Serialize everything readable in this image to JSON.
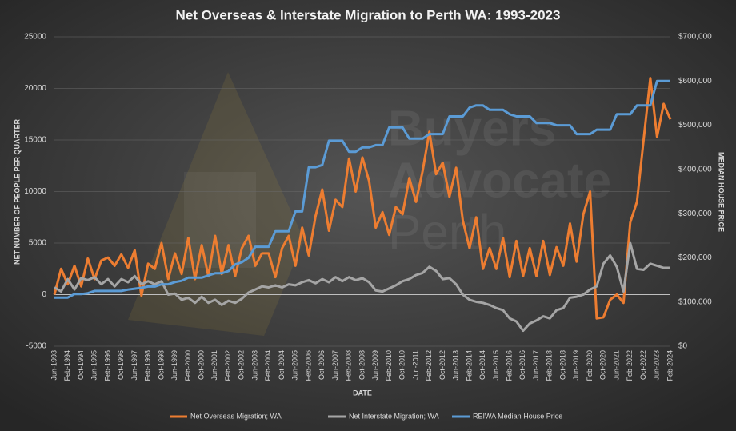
{
  "chart_data": {
    "type": "line",
    "title": "Net Overseas & Interstate Migration to Perth WA: 1993-2023",
    "y_label": "NET NUMBER OF PEOPLE PER QUARTER",
    "y2_label": "MEDIAN HOUSE PRICE",
    "x_label": "DATE",
    "watermark": [
      "Buyers",
      "Advocate",
      "Perth"
    ],
    "categories": [
      "Jun-1993",
      null,
      "Feb-1994",
      null,
      "Oct-1994",
      null,
      "Jun-1995",
      null,
      "Feb-1996",
      null,
      "Oct-1996",
      null,
      "Jun-1997",
      null,
      "Feb-1998",
      null,
      "Oct-1998",
      null,
      "Jun-1999",
      null,
      "Feb-2000",
      null,
      "Oct-2000",
      null,
      "Jun-2001",
      null,
      "Feb-2002",
      null,
      "Oct-2002",
      null,
      "Jun-2003",
      null,
      "Feb-2004",
      null,
      "Oct-2004",
      null,
      "Jun-2005",
      null,
      "Feb-2006",
      null,
      "Oct-2006",
      null,
      "Jun-2007",
      null,
      "Feb-2008",
      null,
      "Oct-2008",
      null,
      "Jun-2009",
      null,
      "Feb-2010",
      null,
      "Oct-2010",
      null,
      "Jun-2011",
      null,
      "Feb-2012",
      null,
      "Oct-2012",
      null,
      "Jun-2013",
      null,
      "Feb-2014",
      null,
      "Oct-2014",
      null,
      "Jun-2015",
      null,
      "Feb-2016",
      null,
      "Oct-2016",
      null,
      "Jun-2017",
      null,
      "Feb-2018",
      null,
      "Oct-2018",
      null,
      "Jun-2019",
      null,
      "Feb-2020",
      null,
      "Oct-2020",
      null,
      "Jun-2021",
      null,
      "Feb-2022",
      null,
      "Oct-2022",
      null,
      "Jun-2023",
      null,
      "Feb-2024"
    ],
    "series": [
      {
        "name": "Net Overseas Migration; WA",
        "color": "#ed7d31",
        "axis": "y",
        "values": [
          0,
          2500,
          1000,
          2800,
          800,
          3500,
          1500,
          3300,
          3600,
          2800,
          3900,
          2600,
          4300,
          -100,
          3000,
          2500,
          5000,
          1500,
          4000,
          2000,
          5500,
          1500,
          4800,
          1800,
          5700,
          2000,
          4800,
          1800,
          4500,
          5700,
          2800,
          4000,
          4000,
          1700,
          4500,
          5700,
          2800,
          6500,
          3800,
          7600,
          10200,
          6200,
          9200,
          8500,
          13200,
          10000,
          13300,
          11000,
          6500,
          8000,
          5800,
          8500,
          7800,
          11300,
          9000,
          12000,
          15800,
          11700,
          12800,
          9500,
          12300,
          7200,
          4500,
          7500,
          2500,
          4500,
          2500,
          5500,
          1700,
          5200,
          1800,
          4500,
          1800,
          5200,
          1900,
          4600,
          2800,
          6900,
          3200,
          7800,
          10000,
          -2300,
          -2200,
          -500,
          0,
          -800,
          7000,
          9000,
          15000,
          21000,
          15300,
          18500,
          17000
        ]
      },
      {
        "name": "Net Interstate Migration; WA",
        "color": "#a5a5a5",
        "axis": "y",
        "values": [
          700,
          300,
          1500,
          500,
          1600,
          1400,
          1700,
          1000,
          1500,
          800,
          1500,
          1200,
          1800,
          1000,
          1300,
          1000,
          1300,
          0,
          100,
          -500,
          -300,
          -800,
          -200,
          -800,
          -500,
          -1000,
          -600,
          -800,
          -400,
          200,
          500,
          800,
          700,
          900,
          700,
          1000,
          900,
          1200,
          1400,
          1100,
          1500,
          1200,
          1700,
          1300,
          1700,
          1400,
          1600,
          1200,
          400,
          300,
          600,
          900,
          1300,
          1500,
          1900,
          2100,
          2700,
          2300,
          1500,
          1600,
          1000,
          0,
          -500,
          -700,
          -800,
          -1000,
          -1300,
          -1500,
          -2300,
          -2600,
          -3500,
          -2800,
          -2500,
          -2100,
          -2300,
          -1500,
          -1300,
          -300,
          -200,
          0,
          500,
          800,
          3000,
          3800,
          2700,
          300,
          5000,
          2500,
          2400,
          3000,
          2800,
          2600,
          2600
        ]
      },
      {
        "name": "REIWA Median House Price",
        "color": "#5b9bd5",
        "axis": "y2",
        "values": [
          110000,
          110000,
          110000,
          118000,
          118000,
          120000,
          125000,
          125000,
          125000,
          125000,
          125000,
          128000,
          130000,
          132000,
          135000,
          135000,
          140000,
          140000,
          145000,
          148000,
          155000,
          155000,
          155000,
          160000,
          165000,
          165000,
          170000,
          185000,
          190000,
          200000,
          225000,
          225000,
          225000,
          260000,
          260000,
          260000,
          305000,
          305000,
          405000,
          405000,
          410000,
          465000,
          465000,
          465000,
          440000,
          440000,
          450000,
          450000,
          455000,
          455000,
          495000,
          495000,
          495000,
          470000,
          470000,
          470000,
          480000,
          480000,
          480000,
          520000,
          520000,
          520000,
          540000,
          545000,
          545000,
          535000,
          535000,
          535000,
          525000,
          520000,
          520000,
          520000,
          505000,
          505000,
          505000,
          500000,
          500000,
          500000,
          480000,
          480000,
          480000,
          490000,
          490000,
          490000,
          525000,
          525000,
          525000,
          545000,
          545000,
          545000,
          600000,
          600000,
          600000
        ]
      }
    ],
    "ylim": [
      -5000,
      25000
    ],
    "yticks": [
      -5000,
      0,
      5000,
      10000,
      15000,
      20000,
      25000
    ],
    "y2lim": [
      0,
      700000
    ],
    "y2ticks": [
      {
        "value": 0,
        "label": "$0"
      },
      {
        "value": 100000,
        "label": "$100,000"
      },
      {
        "value": 200000,
        "label": "$200,000"
      },
      {
        "value": 300000,
        "label": "$300,000"
      },
      {
        "value": 400000,
        "label": "$400,000"
      },
      {
        "value": 500000,
        "label": "$500,000"
      },
      {
        "value": 600000,
        "label": "$600,000"
      },
      {
        "value": 700000,
        "label": "$700,000"
      }
    ],
    "grid": true,
    "legend": "bottom"
  }
}
